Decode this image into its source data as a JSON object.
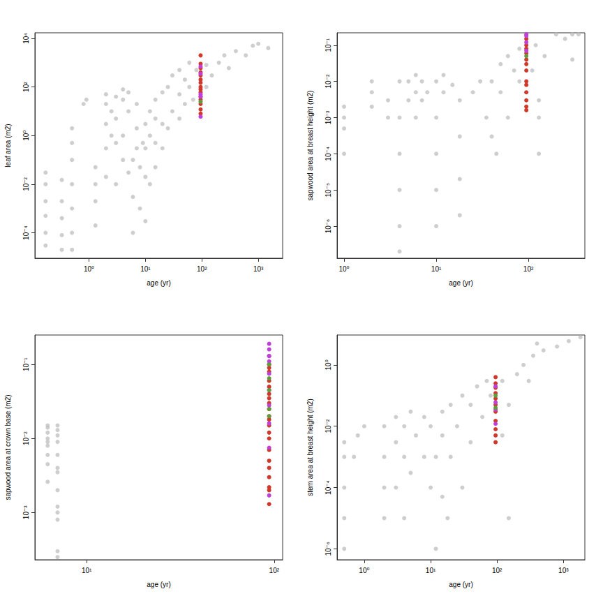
{
  "chart_data": [
    {
      "type": "scatter",
      "log": true,
      "grid": false,
      "x_label": "age (yr)",
      "y_label": "leaf area (m2)",
      "xlim": [
        0.11,
        2700
      ],
      "ylim": [
        9e-06,
        17000
      ],
      "xticks": [
        {
          "value": 1,
          "label": "10⁰"
        },
        {
          "value": 10,
          "label": "10¹"
        },
        {
          "value": 100,
          "label": "10²"
        },
        {
          "value": 1000,
          "label": "10³"
        }
      ],
      "yticks": [
        {
          "value": 0.0001,
          "label": "10⁻⁴"
        },
        {
          "value": 0.01,
          "label": "10⁻²"
        },
        {
          "value": 1,
          "label": "10⁰"
        },
        {
          "value": 100,
          "label": "10²"
        },
        {
          "value": 10000,
          "label": "10⁴"
        }
      ],
      "series": [
        {
          "color": "#bebebe",
          "x": [
            0.17,
            0.17,
            0.17,
            0.17,
            0.17,
            0.17,
            0.33,
            0.33,
            0.33,
            0.33,
            0.33,
            0.5,
            0.5,
            0.5,
            0.5,
            0.5,
            0.5,
            0.5,
            1.3,
            1.3,
            1.3,
            1.3,
            0.8,
            0.9,
            2,
            2,
            2,
            2,
            2,
            2.5,
            2.5,
            3,
            3,
            3,
            3,
            4,
            4,
            4,
            4,
            5,
            5,
            5,
            6,
            6,
            6,
            7,
            7,
            7,
            8,
            8,
            9,
            10,
            10,
            10,
            10,
            12,
            12,
            12,
            15,
            15,
            15,
            15,
            20,
            20,
            20,
            25,
            25,
            30,
            30,
            40,
            40,
            40,
            50,
            50,
            60,
            60,
            70,
            80,
            120,
            120,
            150,
            200,
            250,
            300,
            400,
            600,
            800,
            1000,
            1500
          ],
          "values": [
            3e-05,
            0.0001,
            0.0005,
            0.002,
            0.01,
            0.03,
            2e-05,
            8e-05,
            0.0004,
            0.002,
            0.015,
            2e-05,
            0.0001,
            0.001,
            0.01,
            0.1,
            0.5,
            2,
            0.0002,
            0.002,
            0.01,
            0.05,
            20,
            30,
            0.02,
            0.3,
            3,
            20,
            50,
            1,
            10,
            0.01,
            0.5,
            5,
            40,
            0.1,
            1,
            30,
            80,
            0.03,
            10,
            60,
            0.0001,
            0.003,
            0.1,
            0.3,
            2,
            20,
            0.001,
            0.05,
            0.5,
            0.0003,
            0.02,
            0.3,
            3,
            0.01,
            1,
            10,
            0.05,
            0.5,
            5,
            30,
            0.3,
            3,
            60,
            2,
            100,
            10,
            300,
            5,
            50,
            500,
            20,
            200,
            100,
            1000,
            30,
            500,
            100,
            800,
            300,
            1000,
            2000,
            600,
            3000,
            2000,
            5000,
            6000,
            4000
          ]
        },
        {
          "color": "#d0382a",
          "x": [
            95,
            95,
            95,
            95,
            95,
            95,
            95,
            95,
            95,
            95,
            95,
            95,
            95,
            95,
            95
          ],
          "values": [
            2000,
            900,
            600,
            400,
            300,
            200,
            150,
            100,
            80,
            60,
            40,
            30,
            20,
            12,
            8
          ]
        },
        {
          "color": "#bf3fdb",
          "x": [
            95,
            95,
            95,
            95,
            95
          ],
          "values": [
            700,
            350,
            50,
            40,
            6
          ]
        },
        {
          "color": "#5e9c3c",
          "x": [
            95
          ],
          "values": [
            25
          ]
        }
      ]
    },
    {
      "type": "scatter",
      "log": true,
      "grid": false,
      "x_label": "age (yr)",
      "y_label": "sapwood area at breast height (m2)",
      "xlim": [
        0.84,
        410
      ],
      "ylim": [
        1.3e-07,
        0.22
      ],
      "xticks": [
        {
          "value": 1,
          "label": "10⁰"
        },
        {
          "value": 10,
          "label": "10¹"
        },
        {
          "value": 100,
          "label": "10²"
        }
      ],
      "yticks": [
        {
          "value": 1e-06,
          "label": "10⁻⁶"
        },
        {
          "value": 1e-05,
          "label": "10⁻⁵"
        },
        {
          "value": 0.0001,
          "label": "10⁻⁴"
        },
        {
          "value": 0.001,
          "label": "10⁻³"
        },
        {
          "value": 0.01,
          "label": "10⁻²"
        },
        {
          "value": 0.1,
          "label": "10⁻¹"
        }
      ],
      "series": [
        {
          "color": "#bebebe",
          "x": [
            1,
            1,
            1,
            1,
            2,
            2,
            2,
            3,
            3,
            4,
            4,
            4,
            4,
            4,
            4,
            5,
            5,
            6,
            6,
            6,
            7,
            7,
            8,
            10,
            10,
            10,
            10,
            10,
            12,
            12,
            15,
            18,
            18,
            18,
            18,
            25,
            30,
            35,
            40,
            40,
            45,
            50,
            50,
            60,
            60,
            70,
            80,
            80,
            110,
            120,
            130,
            130,
            130,
            150,
            200,
            250,
            300,
            350,
            300
          ],
          "values": [
            0.0001,
            0.0005,
            0.001,
            0.002,
            0.002,
            0.005,
            0.01,
            0.001,
            0.003,
            2e-07,
            1e-06,
            1e-05,
            0.0001,
            0.001,
            0.01,
            0.003,
            0.01,
            0.001,
            0.005,
            0.015,
            0.003,
            0.01,
            0.005,
            1e-06,
            1e-05,
            0.0001,
            0.001,
            0.01,
            0.005,
            0.015,
            0.008,
            2e-06,
            2e-05,
            0.0003,
            0.003,
            0.005,
            0.01,
            0.001,
            0.0003,
            0.01,
            0.0001,
            0.005,
            0.03,
            0.001,
            0.05,
            0.02,
            0.01,
            0.08,
            0.02,
            0.1,
            0.0001,
            0.001,
            0.003,
            0.05,
            0.2,
            0.15,
            0.2,
            0.2,
            0.04
          ]
        },
        {
          "color": "#d0382a",
          "x": [
            95,
            95,
            95,
            95,
            95,
            95,
            95,
            95,
            95,
            95,
            95,
            95,
            95
          ],
          "values": [
            0.15,
            0.1,
            0.08,
            0.06,
            0.04,
            0.03,
            0.02,
            0.01,
            0.008,
            0.005,
            0.003,
            0.002,
            0.0016
          ]
        },
        {
          "color": "#bf3fdb",
          "x": [
            95,
            95,
            95,
            95
          ],
          "values": [
            0.2,
            0.18,
            0.12,
            0.07
          ]
        },
        {
          "color": "#5e9c3c",
          "x": [
            95
          ],
          "values": [
            0.05
          ]
        }
      ]
    },
    {
      "type": "scatter",
      "log": true,
      "grid": false,
      "x_label": "age (yr)",
      "y_label": "sapwood area at crown base (m2)",
      "xlim": [
        5.3,
        111
      ],
      "ylim": [
        0.00023,
        0.25
      ],
      "xticks": [
        {
          "value": 10,
          "label": "10¹"
        },
        {
          "value": 100,
          "label": "10²"
        }
      ],
      "yticks": [
        {
          "value": 0.001,
          "label": "10⁻³"
        },
        {
          "value": 0.01,
          "label": "10⁻²"
        },
        {
          "value": 0.1,
          "label": "10⁻¹"
        }
      ],
      "series": [
        {
          "color": "#bebebe",
          "x": [
            6.2,
            6.2,
            6.2,
            6.2,
            6.2,
            6.2,
            6.2,
            6.2,
            6.2,
            7,
            7,
            7,
            7,
            7,
            7,
            7,
            7,
            7,
            7,
            7,
            7,
            7
          ],
          "values": [
            0.015,
            0.014,
            0.012,
            0.01,
            0.009,
            0.008,
            0.006,
            0.0045,
            0.0026,
            0.015,
            0.013,
            0.011,
            0.009,
            0.006,
            0.004,
            0.0035,
            0.002,
            0.0012,
            0.001,
            0.0008,
            0.0003,
            0.00025
          ]
        },
        {
          "color": "#d0382a",
          "x": [
            94,
            94,
            94,
            94,
            94,
            94,
            94,
            94,
            94,
            94,
            94,
            94,
            94,
            94,
            94,
            94,
            94,
            94,
            94,
            94,
            94,
            94
          ],
          "values": [
            0.13,
            0.1,
            0.09,
            0.08,
            0.06,
            0.05,
            0.04,
            0.035,
            0.03,
            0.025,
            0.02,
            0.018,
            0.015,
            0.012,
            0.01,
            0.007,
            0.005,
            0.004,
            0.003,
            0.0022,
            0.002,
            0.0013
          ]
        },
        {
          "color": "#bf3fdb",
          "x": [
            94,
            94,
            94,
            94,
            94,
            94,
            94,
            94,
            94,
            94
          ],
          "values": [
            0.19,
            0.16,
            0.13,
            0.11,
            0.075,
            0.045,
            0.028,
            0.016,
            0.0075,
            0.0017
          ]
        },
        {
          "color": "#5e9c3c",
          "x": [
            94,
            94,
            94,
            94,
            94
          ],
          "values": [
            0.1,
            0.065,
            0.045,
            0.025,
            0.02
          ]
        }
      ]
    },
    {
      "type": "scatter",
      "log": true,
      "grid": false,
      "x_label": "age (yr)",
      "y_label": "stem area at breast height (m2)",
      "xlim": [
        0.39,
        2100
      ],
      "ylim": [
        4.4e-07,
        9.5
      ],
      "xticks": [
        {
          "value": 1,
          "label": "10⁰"
        },
        {
          "value": 10,
          "label": "10¹"
        },
        {
          "value": 100,
          "label": "10²"
        },
        {
          "value": 1000,
          "label": "10³"
        }
      ],
      "yticks": [
        {
          "value": 1e-06,
          "label": "10⁻⁶"
        },
        {
          "value": 0.0001,
          "label": "10⁻⁴"
        },
        {
          "value": 0.01,
          "label": "10⁻²"
        },
        {
          "value": 1,
          "label": "10⁰"
        }
      ],
      "series": [
        {
          "color": "#bebebe",
          "x": [
            0.5,
            0.5,
            0.5,
            0.5,
            0.5,
            0.7,
            0.8,
            1,
            2,
            2,
            2,
            2,
            3,
            3,
            3,
            4,
            4,
            4,
            5,
            5,
            6,
            8,
            8,
            10,
            10,
            12,
            12,
            15,
            15,
            15,
            18,
            20,
            20,
            25,
            30,
            30,
            40,
            40,
            50,
            60,
            70,
            80,
            120,
            120,
            150,
            150,
            200,
            250,
            300,
            350,
            400,
            500,
            800,
            1200,
            1800
          ],
          "values": [
            1e-06,
            1e-05,
            0.0001,
            0.001,
            0.003,
            0.001,
            0.005,
            0.01,
            1e-05,
            0.0001,
            0.001,
            0.01,
            0.0001,
            0.003,
            0.02,
            1e-05,
            0.001,
            0.01,
            0.0003,
            0.03,
            0.005,
            0.001,
            0.02,
            0.0001,
            0.01,
            1e-06,
            0.001,
            5e-05,
            0.005,
            0.03,
            1e-05,
            0.001,
            0.05,
            0.01,
            0.0001,
            0.1,
            0.003,
            0.05,
            0.2,
            0.02,
            0.3,
            0.1,
            0.005,
            0.3,
            1e-05,
            0.05,
            0.5,
            1,
            0.3,
            2,
            5,
            3,
            4,
            6,
            8
          ]
        },
        {
          "color": "#d0382a",
          "x": [
            95,
            95,
            95,
            95,
            95,
            95,
            95,
            95,
            95,
            95,
            95
          ],
          "values": [
            0.4,
            0.25,
            0.18,
            0.12,
            0.08,
            0.05,
            0.03,
            0.015,
            0.008,
            0.005,
            0.003
          ]
        },
        {
          "color": "#bf3fdb",
          "x": [
            95,
            95,
            95,
            95
          ],
          "values": [
            0.2,
            0.06,
            0.035,
            0.012
          ]
        },
        {
          "color": "#5e9c3c",
          "x": [
            95,
            95
          ],
          "values": [
            0.1,
            0.04
          ]
        }
      ]
    }
  ]
}
